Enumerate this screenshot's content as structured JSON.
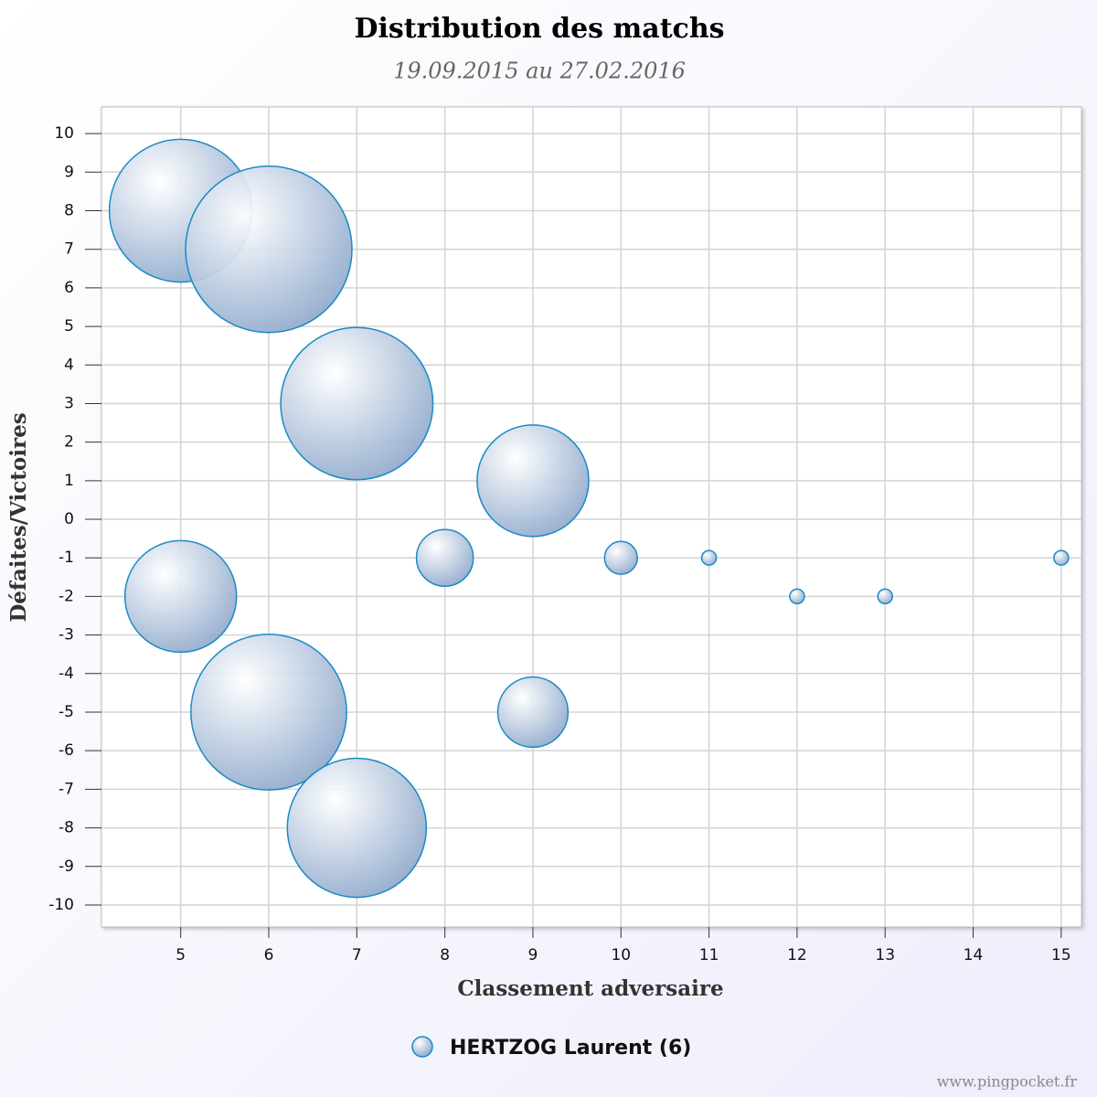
{
  "chart_data": {
    "type": "bubble",
    "title": "Distribution des matchs",
    "subtitle": "19.09.2015 au 27.02.2016",
    "x_label": "Classement adversaire",
    "y_label": "Défaites/Victoires",
    "credit": "www.pingpocket.fr",
    "xlim": [
      4.1,
      15.23
    ],
    "ylim": [
      -10.57,
      10.69
    ],
    "xticks": [
      5,
      6,
      7,
      8,
      9,
      10,
      11,
      12,
      13,
      14,
      15
    ],
    "yticks": [
      -10,
      -9,
      -8,
      -7,
      -6,
      -5,
      -4,
      -3,
      -2,
      -1,
      0,
      1,
      2,
      3,
      4,
      5,
      6,
      7,
      8,
      9,
      10
    ],
    "grid": true,
    "series": [
      {
        "name": "HERTZOG Laurent (6)",
        "color": "#1a8ac4",
        "x": [
          5,
          6,
          7,
          9,
          5,
          8,
          10,
          11,
          15,
          12,
          13,
          6,
          9,
          7
        ],
        "y": [
          8,
          7,
          3,
          1,
          -2,
          -1,
          -1,
          -1,
          -1,
          -2,
          -2,
          -5,
          -5,
          -8
        ],
        "sizes": [
          95,
          129,
          108,
          58,
          58,
          15,
          5,
          1,
          1,
          1,
          1,
          113,
          23,
          90
        ]
      }
    ]
  }
}
